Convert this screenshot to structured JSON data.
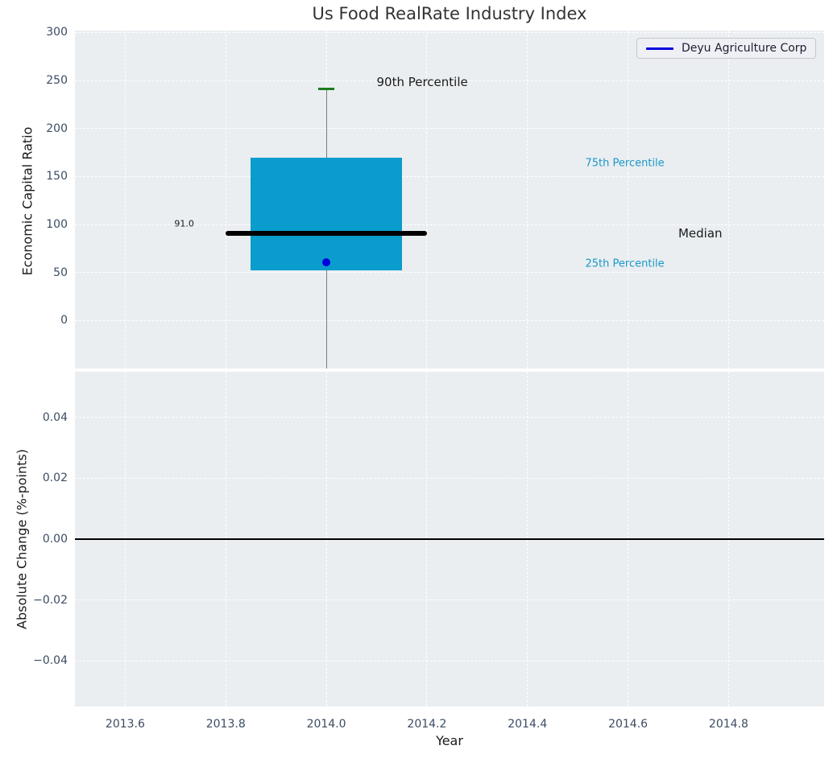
{
  "title": "Us Food RealRate Industry Index",
  "legend": {
    "label": "Deyu Agriculture Corp",
    "line_color": "#0000dd",
    "position": "upper right"
  },
  "colors": {
    "box_fill": "#099ccd",
    "percentile_text": "#1a98c8",
    "cap_green": "#1a7d1a",
    "whisker_gray": "#7a7a7a",
    "company_blue": "#0000dd",
    "median_black": "#000000",
    "axes_bg": "#eaeef1",
    "grid": "#ffffff",
    "tick_text": "#3b4c63",
    "label_text": "#1a1a1a",
    "title_text": "#333333"
  },
  "chart_data": [
    {
      "type": "box",
      "title": "Us Food RealRate Industry Index",
      "ylabel": "Economic Capital Ratio",
      "xlabel": "",
      "grid": true,
      "legend_position": "upper right",
      "xlim": [
        2013.5,
        2014.99
      ],
      "ylim": [
        -50,
        302
      ],
      "xticks": [
        {
          "v": 2013.6
        },
        {
          "v": 2013.8
        },
        {
          "v": 2014.0
        },
        {
          "v": 2014.2
        },
        {
          "v": 2014.4
        },
        {
          "v": 2014.6
        },
        {
          "v": 2014.8
        }
      ],
      "yticks": [
        {
          "v": 0,
          "label": "0"
        },
        {
          "v": 50,
          "label": "50"
        },
        {
          "v": 100,
          "label": "100"
        },
        {
          "v": 150,
          "label": "150"
        },
        {
          "v": 200,
          "label": "200"
        },
        {
          "v": 250,
          "label": "250"
        },
        {
          "v": 300,
          "label": "300"
        }
      ],
      "x": 2014.0,
      "box": {
        "q25": 52,
        "median": 91,
        "q75": 170,
        "p90": 242,
        "median_label": "91.0",
        "whisker_extends_below_axis": true
      },
      "company_point": {
        "name": "Deyu Agriculture Corp",
        "x": 2014.0,
        "y": 61
      },
      "geometry": {
        "box_halfwidth": 0.15,
        "median_halfwidth": 0.2,
        "cap_halfwidth": 0.016
      },
      "annotations": [
        {
          "text": "90th Percentile",
          "x": 2014.1,
          "y": 248,
          "color": "#1a1a1a",
          "size": 15,
          "align": "left"
        },
        {
          "text": "75th Percentile",
          "x": 2014.515,
          "y": 164,
          "color": "#1a98c8",
          "size": 13,
          "align": "left"
        },
        {
          "text": "Median",
          "x": 2014.7,
          "y": 91,
          "color": "#1a1a1a",
          "size": 15,
          "align": "left"
        },
        {
          "text": "25th Percentile",
          "x": 2014.515,
          "y": 59,
          "color": "#1a98c8",
          "size": 13,
          "align": "left"
        },
        {
          "text": "91.0",
          "x": 2013.737,
          "y": 101,
          "color": "#1a1a1a",
          "size": 11,
          "align": "right"
        }
      ]
    },
    {
      "type": "line",
      "title": "",
      "ylabel": "Absolute Change (%-points)",
      "xlabel": "Year",
      "grid": true,
      "xlim": [
        2013.5,
        2014.99
      ],
      "ylim": [
        -0.055,
        0.055
      ],
      "xticks": [
        {
          "v": 2013.6,
          "label": "2013.6"
        },
        {
          "v": 2013.8,
          "label": "2013.8"
        },
        {
          "v": 2014.0,
          "label": "2014.0"
        },
        {
          "v": 2014.2,
          "label": "2014.2"
        },
        {
          "v": 2014.4,
          "label": "2014.4"
        },
        {
          "v": 2014.6,
          "label": "2014.6"
        },
        {
          "v": 2014.8,
          "label": "2014.8"
        }
      ],
      "yticks": [
        {
          "v": 0.04,
          "label": "0.04"
        },
        {
          "v": 0.02,
          "label": "0.02"
        },
        {
          "v": 0.0,
          "label": "0.00"
        },
        {
          "v": -0.02,
          "label": "−0.02"
        },
        {
          "v": -0.04,
          "label": "−0.04"
        }
      ],
      "zero_line_y": 0.0
    }
  ]
}
